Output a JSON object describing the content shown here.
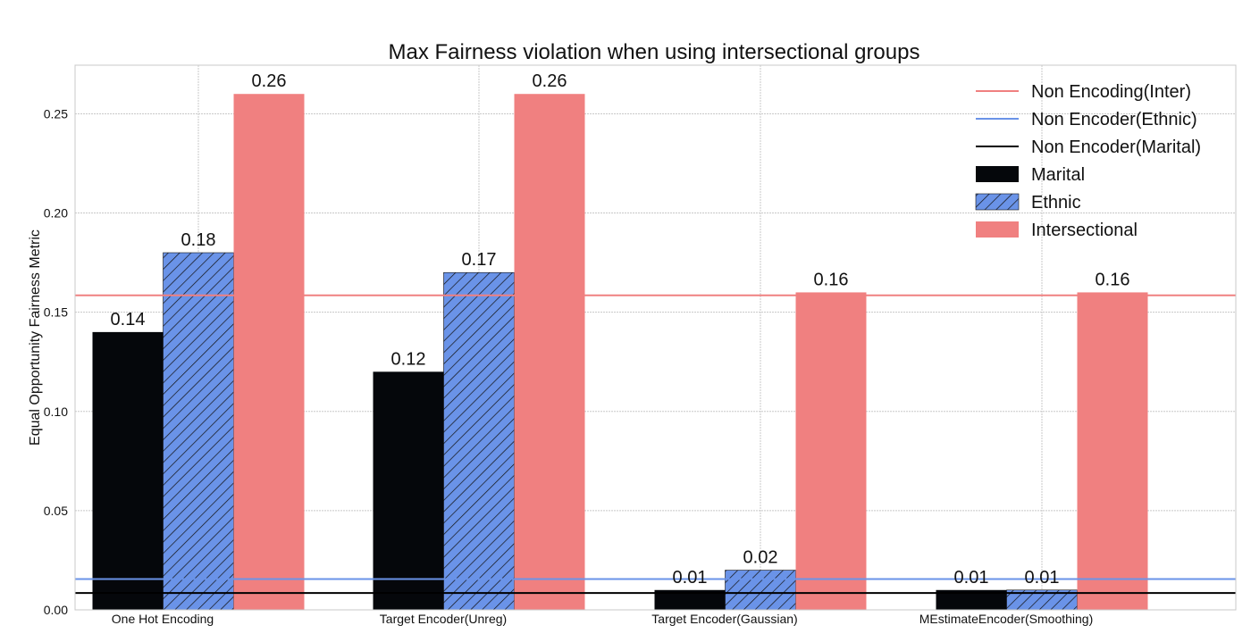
{
  "chart_data": {
    "type": "bar",
    "title": "Max Fairness violation when using intersectional groups",
    "xlabel": "",
    "ylabel": "Equal Opportunity Fairness Metric",
    "categories": [
      "One Hot Encoding",
      "Target Encoder(Unreg)",
      "Target Encoder(Gaussian)",
      "MEstimateEncoder(Smoothing)"
    ],
    "series": [
      {
        "name": "Marital",
        "values": [
          0.14,
          0.12,
          0.01,
          0.01
        ],
        "color": "#05070b",
        "hatch": false
      },
      {
        "name": "Ethnic",
        "values": [
          0.18,
          0.17,
          0.02,
          0.01
        ],
        "color": "#6a93e8",
        "hatch": true
      },
      {
        "name": "Intersectional",
        "values": [
          0.26,
          0.26,
          0.16,
          0.16
        ],
        "color": "#f08080",
        "hatch": false
      }
    ],
    "value_labels": [
      [
        "0.14",
        "0.12",
        "0.01",
        "0.01"
      ],
      [
        "0.18",
        "0.17",
        "0.02",
        "0.01"
      ],
      [
        "0.26",
        "0.26",
        "0.16",
        "0.16"
      ]
    ],
    "reference_lines": [
      {
        "name": "Non Encoding(Inter)",
        "value": 0.1585,
        "color": "#f08080"
      },
      {
        "name": "Non Encoder(Ethnic)",
        "value": 0.0155,
        "color": "#6a93e8"
      },
      {
        "name": "Non Encoder(Marital)",
        "value": 0.0085,
        "color": "#000000"
      }
    ],
    "ylim": [
      0,
      0.2745
    ],
    "yticks": [
      "0.00",
      "0.05",
      "0.10",
      "0.15",
      "0.20",
      "0.25"
    ],
    "ytick_values": [
      0,
      0.05,
      0.1,
      0.15,
      0.2,
      0.25
    ],
    "grid": true,
    "legend_position": "top-right"
  }
}
